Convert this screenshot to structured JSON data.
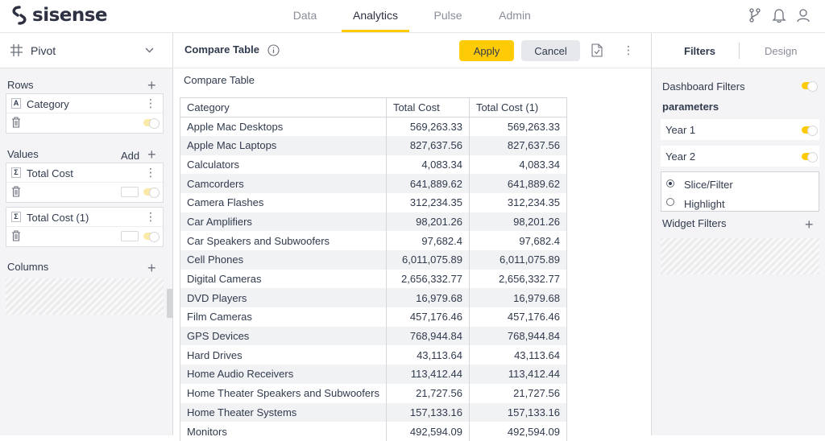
{
  "app": {
    "brand": "sisense",
    "nav": [
      {
        "label": "Data",
        "active": false
      },
      {
        "label": "Analytics",
        "active": true
      },
      {
        "label": "Pulse",
        "active": false
      },
      {
        "label": "Admin",
        "active": false
      }
    ],
    "accent_color": "#ffcb05"
  },
  "left_panel": {
    "widget_type": "Pivot",
    "rows_title": "Rows",
    "rows_item": "Category",
    "values_title": "Values",
    "values_add": "Add",
    "values_items": [
      "Total Cost",
      "Total Cost (1)"
    ],
    "columns_title": "Columns"
  },
  "widget": {
    "title": "Compare Table",
    "apply_label": "Apply",
    "cancel_label": "Cancel",
    "caption": "Compare Table",
    "columns": [
      "Category",
      "Total Cost",
      "Total Cost (1)"
    ],
    "rows": [
      [
        "Apple Mac Desktops",
        "569,263.33",
        "569,263.33"
      ],
      [
        "Apple Mac Laptops",
        "827,637.56",
        "827,637.56"
      ],
      [
        "Calculators",
        "4,083.34",
        "4,083.34"
      ],
      [
        "Camcorders",
        "641,889.62",
        "641,889.62"
      ],
      [
        "Camera Flashes",
        "312,234.35",
        "312,234.35"
      ],
      [
        "Car Amplifiers",
        "98,201.26",
        "98,201.26"
      ],
      [
        "Car Speakers and Subwoofers",
        "97,682.4",
        "97,682.4"
      ],
      [
        "Cell Phones",
        "6,011,075.89",
        "6,011,075.89"
      ],
      [
        "Digital Cameras",
        "2,656,332.77",
        "2,656,332.77"
      ],
      [
        "DVD Players",
        "16,979.68",
        "16,979.68"
      ],
      [
        "Film Cameras",
        "457,176.46",
        "457,176.46"
      ],
      [
        "GPS Devices",
        "768,944.84",
        "768,944.84"
      ],
      [
        "Hard Drives",
        "43,113.64",
        "43,113.64"
      ],
      [
        "Home Audio Receivers",
        "113,412.44",
        "113,412.44"
      ],
      [
        "Home Theater Speakers and Subwoofers",
        "21,727.56",
        "21,727.56"
      ],
      [
        "Home Theater Systems",
        "157,133.16",
        "157,133.16"
      ],
      [
        "Monitors",
        "492,594.09",
        "492,594.09"
      ]
    ]
  },
  "right_panel": {
    "tabs": [
      {
        "label": "Filters",
        "active": true
      },
      {
        "label": "Design",
        "active": false
      }
    ],
    "dashboard_filters": "Dashboard Filters",
    "parameters": "parameters",
    "param_items": [
      "Year 1",
      "Year 2"
    ],
    "radio_options": [
      {
        "label": "Slice/Filter",
        "selected": true
      },
      {
        "label": "Highlight",
        "selected": false
      }
    ],
    "widget_filters": "Widget Filters"
  }
}
